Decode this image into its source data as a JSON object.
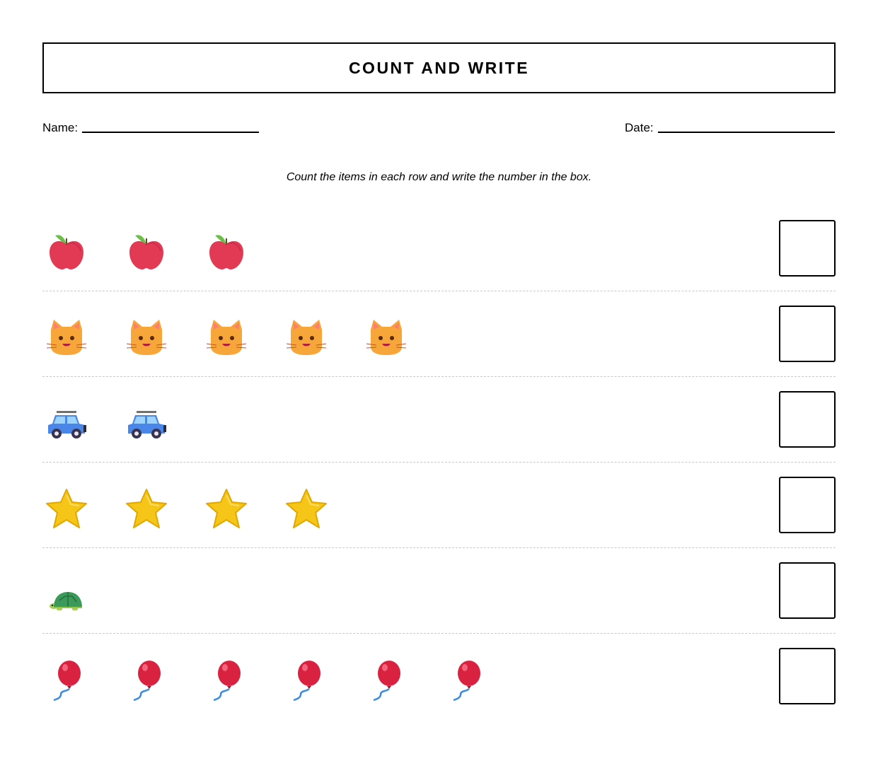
{
  "worksheet": {
    "title": "COUNT AND WRITE",
    "name_label": "Name:",
    "date_label": "Date:",
    "instruction": "Count the items in each row and write the number in the box."
  },
  "rows": [
    {
      "item": "apple-icon",
      "count": 3,
      "answer": ""
    },
    {
      "item": "cat-face-icon",
      "count": 5,
      "answer": ""
    },
    {
      "item": "car-icon",
      "count": 2,
      "answer": ""
    },
    {
      "item": "star-icon",
      "count": 4,
      "answer": ""
    },
    {
      "item": "turtle-icon",
      "count": 1,
      "answer": ""
    },
    {
      "item": "balloon-icon",
      "count": 6,
      "answer": ""
    }
  ],
  "colors": {
    "apple": "#e23a55",
    "cat": "#f7a73a",
    "car": "#4a86e8",
    "star": "#f5c518",
    "turtle": "#3a9a5a",
    "balloon": "#d8223f"
  }
}
